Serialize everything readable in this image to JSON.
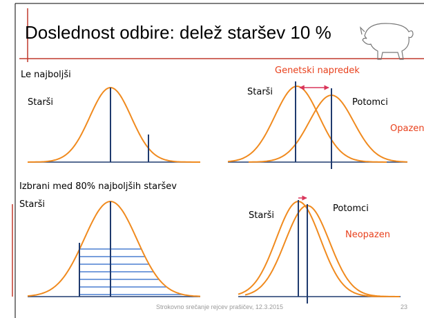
{
  "title": "Doslednost odbire: delež staršev 10 %",
  "panels": [
    {
      "heading": "Le najboljši",
      "parents": "Starši"
    },
    {
      "heading": "Genetski napredek",
      "parents": "Starši",
      "offspring": "Potomci",
      "verdict": "Opazen!"
    },
    {
      "heading": "Izbrani med 80% najboljših staršev",
      "parents": "Starši"
    },
    {
      "parents": "Starši",
      "offspring": "Potomci",
      "verdict": "Neopazen"
    }
  ],
  "footer": {
    "text": "Strokovno srečanje rejcev prašičev, 12.3.2015",
    "page": "23"
  }
}
